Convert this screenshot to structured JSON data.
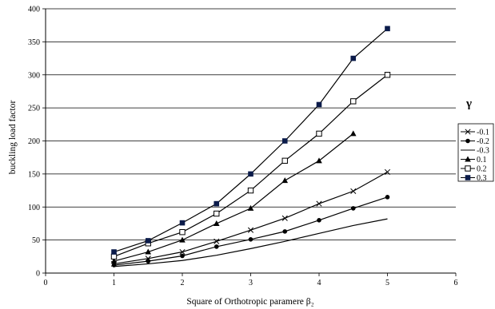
{
  "chart_data": {
    "type": "line",
    "title": "",
    "xlabel": "Square of Orthotropic paramere β₂",
    "ylabel": "buckling load factor",
    "xlim": [
      0,
      6
    ],
    "ylim": [
      0,
      400
    ],
    "x_ticks": [
      "0",
      "1",
      "2",
      "3",
      "4",
      "5",
      "6"
    ],
    "y_ticks": [
      "0",
      "50",
      "100",
      "150",
      "200",
      "250",
      "300",
      "350",
      "400"
    ],
    "grid": "horizontal",
    "legend_position": "right",
    "legend_title": "γ",
    "x": [
      1,
      1.5,
      2,
      2.5,
      3,
      3.5,
      4,
      4.5,
      5
    ],
    "series": [
      {
        "name": "-0.1",
        "marker": "x",
        "values": [
          14,
          22,
          32,
          48,
          65,
          83,
          105,
          124,
          153
        ]
      },
      {
        "name": "-0.2",
        "marker": "dot",
        "values": [
          12,
          18,
          26,
          40,
          51,
          63,
          80,
          98,
          115
        ]
      },
      {
        "name": "-0.3",
        "marker": "none",
        "values": [
          10,
          14,
          19,
          27,
          37,
          48,
          60,
          72,
          82
        ]
      },
      {
        "name": "0.1",
        "marker": "triangle",
        "values": [
          18,
          32,
          50,
          75,
          98,
          140,
          170,
          211,
          null
        ]
      },
      {
        "name": "0.2",
        "marker": "open-square",
        "values": [
          25,
          45,
          62,
          90,
          125,
          170,
          211,
          260,
          300
        ]
      },
      {
        "name": "0.3",
        "marker": "filled-square",
        "values": [
          32,
          49,
          76,
          105,
          150,
          200,
          255,
          325,
          370
        ]
      }
    ]
  }
}
